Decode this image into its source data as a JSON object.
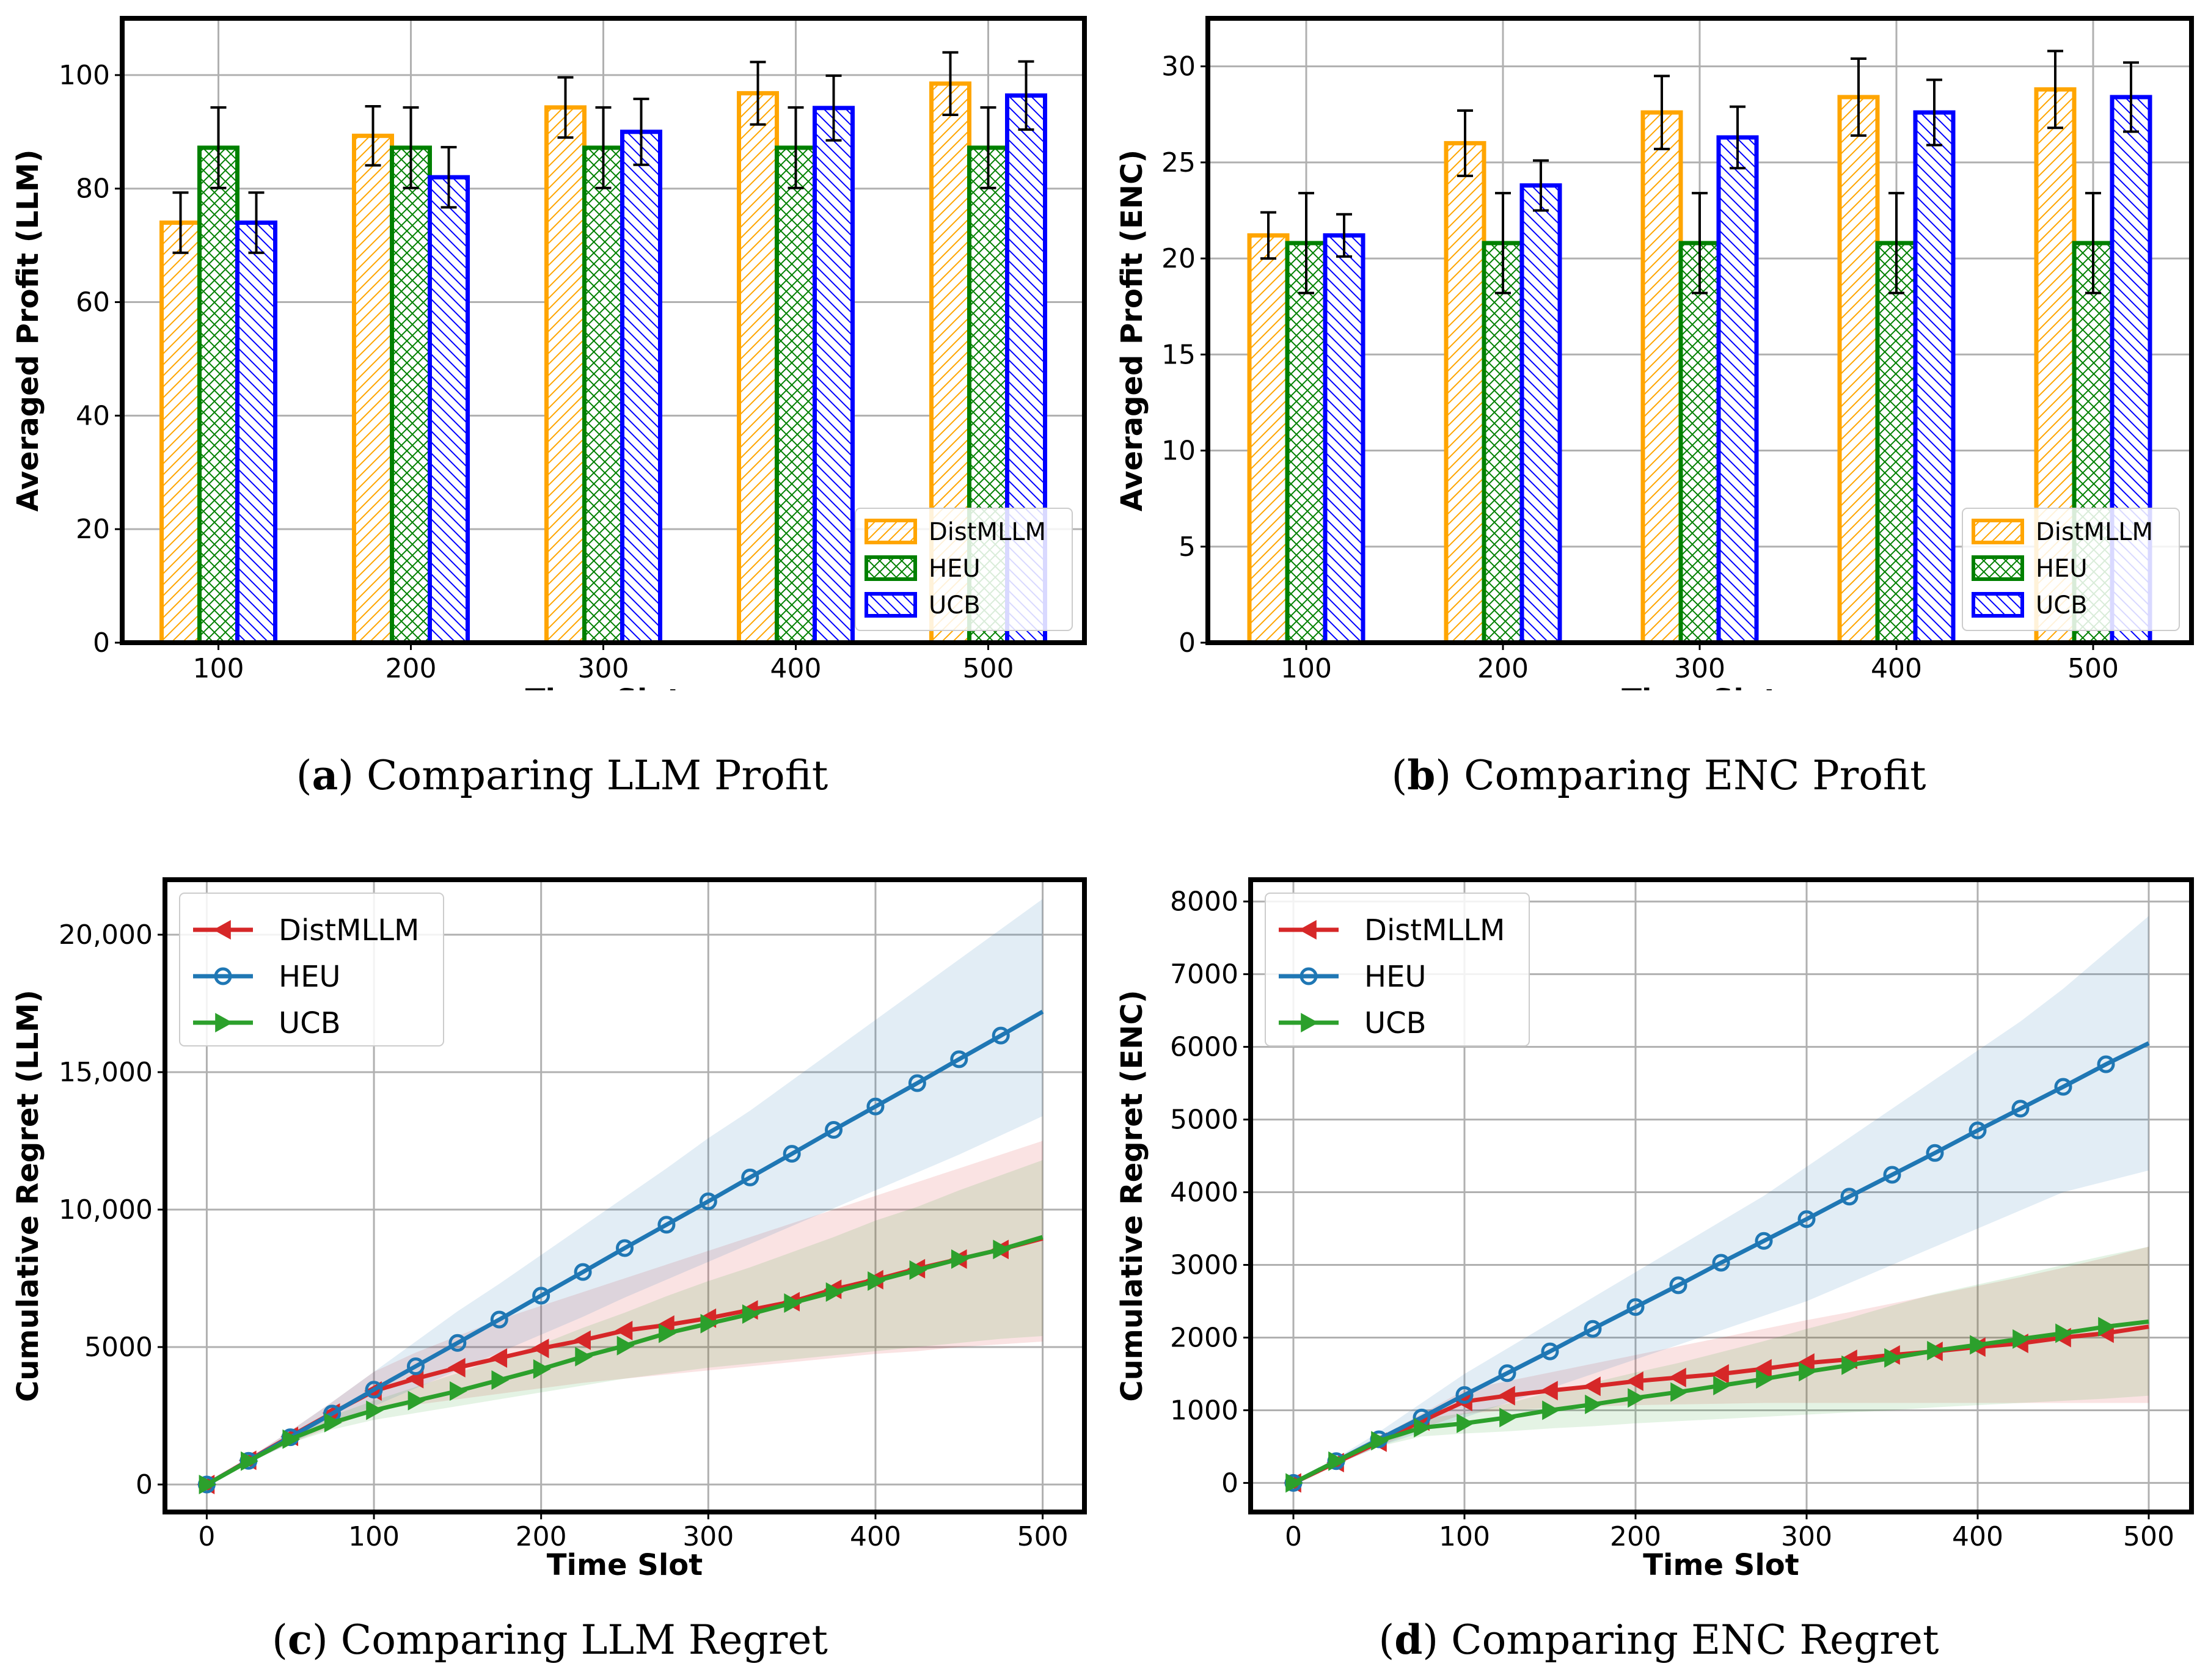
{
  "captions": [
    {
      "letter": "a",
      "open": "(",
      "close": ")",
      "text": "Comparing LLM Profit"
    },
    {
      "letter": "b",
      "open": "(",
      "close": ")",
      "text": "Comparing ENC Profit"
    },
    {
      "letter": "c",
      "open": "(",
      "close": ")",
      "text": "Comparing LLM Regret"
    },
    {
      "letter": "d",
      "open": "(",
      "close": ")",
      "text": "Comparing ENC Regret"
    }
  ],
  "colors": {
    "DistMLLM_bar": "#ffa500",
    "HEU_bar": "#008000",
    "UCB_bar": "#0000ff",
    "DistMLLM_line": "#d62728",
    "HEU_line": "#1f77b4",
    "UCB_line": "#2ca02c"
  },
  "chart_data": [
    {
      "type": "bar",
      "title": "",
      "xlabel": "Time Slot",
      "ylabel": "Averaged Profit (LLM)",
      "categories": [
        "100",
        "200",
        "300",
        "400",
        "500"
      ],
      "ylim": [
        0,
        110
      ],
      "yticks": [
        0,
        20,
        40,
        60,
        80,
        100
      ],
      "ytick_labels": [
        "0",
        "20",
        "40",
        "60",
        "80",
        "100"
      ],
      "legend_location": "lower right",
      "series": [
        {
          "name": "DistMLLM",
          "values": [
            74,
            89.3,
            94.3,
            96.8,
            98.5
          ],
          "errors": [
            5.3,
            5.2,
            5.3,
            5.5,
            5.5
          ]
        },
        {
          "name": "HEU",
          "values": [
            87.2,
            87.2,
            87.2,
            87.2,
            87.2
          ],
          "errors": [
            7.1,
            7.1,
            7.1,
            7.1,
            7.1
          ]
        },
        {
          "name": "UCB",
          "values": [
            74,
            82,
            90,
            94.2,
            96.4
          ],
          "errors": [
            5.3,
            5.3,
            5.8,
            5.7,
            6.0
          ]
        }
      ]
    },
    {
      "type": "bar",
      "title": "",
      "xlabel": "Time Slot",
      "ylabel": "Averaged Profit (ENC)",
      "categories": [
        "100",
        "200",
        "300",
        "400",
        "500"
      ],
      "ylim": [
        0,
        32.5
      ],
      "yticks": [
        0,
        5,
        10,
        15,
        20,
        25,
        30
      ],
      "ytick_labels": [
        "0",
        "5",
        "10",
        "15",
        "20",
        "25",
        "30"
      ],
      "legend_location": "lower right",
      "series": [
        {
          "name": "DistMLLM",
          "values": [
            21.2,
            26,
            27.6,
            28.4,
            28.8
          ],
          "errors": [
            1.2,
            1.7,
            1.9,
            2.0,
            2.0
          ]
        },
        {
          "name": "HEU",
          "values": [
            20.8,
            20.8,
            20.8,
            20.8,
            20.8
          ],
          "errors": [
            2.6,
            2.6,
            2.6,
            2.6,
            2.6
          ]
        },
        {
          "name": "UCB",
          "values": [
            21.2,
            23.8,
            26.3,
            27.6,
            28.4
          ],
          "errors": [
            1.1,
            1.3,
            1.6,
            1.7,
            1.8
          ]
        }
      ]
    },
    {
      "type": "line",
      "title": "",
      "xlabel": "Time Slot",
      "ylabel": "Cumulative Regret (LLM)",
      "xlim": [
        -25,
        525
      ],
      "ylim": [
        -1000,
        22000
      ],
      "xticks": [
        0,
        100,
        200,
        300,
        400,
        500
      ],
      "xtick_labels": [
        "0",
        "100",
        "200",
        "300",
        "400",
        "500"
      ],
      "yticks": [
        0,
        5000,
        10000,
        15000,
        20000
      ],
      "ytick_labels": [
        "0",
        "5000",
        "10,000",
        "15,000",
        "20,000"
      ],
      "legend_location": "upper left",
      "series": [
        {
          "name": "DistMLLM",
          "marker": "triangle-left",
          "x": [
            0,
            25,
            50,
            75,
            100,
            125,
            150,
            175,
            200,
            225,
            250,
            275,
            300,
            325,
            350,
            375,
            400,
            425,
            450,
            475,
            500
          ],
          "y": [
            0,
            880,
            1750,
            2600,
            3400,
            3850,
            4250,
            4600,
            4950,
            5250,
            5600,
            5800,
            6050,
            6350,
            6650,
            7100,
            7450,
            7850,
            8200,
            8550,
            8950
          ],
          "band_lower": [
            0,
            800,
            1500,
            2100,
            2700,
            2900,
            3100,
            3300,
            3500,
            3700,
            3850,
            4000,
            4150,
            4300,
            4450,
            4600,
            4750,
            4850,
            5000,
            5100,
            5200
          ],
          "band_upper": [
            0,
            950,
            1950,
            3000,
            4100,
            4800,
            5400,
            6000,
            6500,
            7000,
            7500,
            8000,
            8500,
            9000,
            9500,
            10000,
            10500,
            11000,
            11500,
            12000,
            12500
          ]
        },
        {
          "name": "HEU",
          "marker": "circle",
          "x": [
            0,
            25,
            50,
            75,
            100,
            125,
            150,
            175,
            200,
            225,
            250,
            275,
            300,
            325,
            350,
            375,
            400,
            425,
            450,
            475,
            500
          ],
          "y": [
            0,
            860,
            1720,
            2580,
            3450,
            4300,
            5150,
            6000,
            6870,
            7730,
            8600,
            9450,
            10300,
            11170,
            12030,
            12900,
            13750,
            14600,
            15470,
            16330,
            17200
          ],
          "band_lower": [
            0,
            780,
            1500,
            2200,
            2850,
            3500,
            4150,
            4800,
            5450,
            6100,
            6800,
            7450,
            8100,
            8750,
            9400,
            10050,
            10700,
            11350,
            12000,
            12700,
            13400
          ],
          "band_upper": [
            0,
            950,
            1950,
            3000,
            4100,
            5200,
            6300,
            7300,
            8350,
            9400,
            10450,
            11500,
            12600,
            13600,
            14700,
            15800,
            16900,
            18000,
            19100,
            20200,
            21300
          ]
        },
        {
          "name": "UCB",
          "marker": "triangle-right",
          "x": [
            0,
            25,
            50,
            75,
            100,
            125,
            150,
            175,
            200,
            225,
            250,
            275,
            300,
            325,
            350,
            375,
            400,
            425,
            450,
            475,
            500
          ],
          "y": [
            0,
            850,
            1650,
            2250,
            2700,
            3050,
            3400,
            3800,
            4200,
            4650,
            5050,
            5500,
            5850,
            6200,
            6600,
            7000,
            7400,
            7800,
            8200,
            8550,
            9000
          ],
          "band_lower": [
            0,
            800,
            1500,
            2000,
            2350,
            2600,
            2850,
            3100,
            3350,
            3600,
            3850,
            4050,
            4250,
            4400,
            4550,
            4700,
            4850,
            5000,
            5150,
            5300,
            5400
          ],
          "band_upper": [
            0,
            900,
            1800,
            2500,
            3050,
            3550,
            4050,
            4600,
            5100,
            5700,
            6250,
            6850,
            7400,
            7900,
            8450,
            9000,
            9600,
            10100,
            10700,
            11250,
            11800
          ]
        }
      ]
    },
    {
      "type": "line",
      "title": "",
      "xlabel": "Time Slot",
      "ylabel": "Cumulative Regret (ENC)",
      "xlim": [
        -25,
        525
      ],
      "ylim": [
        -400,
        8300
      ],
      "xticks": [
        0,
        100,
        200,
        300,
        400,
        500
      ],
      "xtick_labels": [
        "0",
        "100",
        "200",
        "300",
        "400",
        "500"
      ],
      "yticks": [
        0,
        1000,
        2000,
        3000,
        4000,
        5000,
        6000,
        7000,
        8000
      ],
      "ytick_labels": [
        "0",
        "1000",
        "2000",
        "3000",
        "4000",
        "5000",
        "6000",
        "7000",
        "8000"
      ],
      "legend_location": "upper left",
      "series": [
        {
          "name": "DistMLLM",
          "marker": "triangle-left",
          "x": [
            0,
            25,
            50,
            75,
            100,
            125,
            150,
            175,
            200,
            225,
            250,
            275,
            300,
            325,
            350,
            375,
            400,
            425,
            450,
            475,
            500
          ],
          "y": [
            0,
            280,
            560,
            850,
            1120,
            1200,
            1270,
            1330,
            1400,
            1450,
            1500,
            1570,
            1650,
            1700,
            1760,
            1810,
            1870,
            1920,
            2000,
            2060,
            2150
          ],
          "band_lower": [
            0,
            250,
            500,
            750,
            950,
            1000,
            1030,
            1050,
            1070,
            1080,
            1090,
            1100,
            1100,
            1100,
            1100,
            1100,
            1100,
            1100,
            1100,
            1100,
            1100
          ],
          "band_upper": [
            0,
            310,
            630,
            950,
            1280,
            1400,
            1520,
            1640,
            1760,
            1880,
            2000,
            2120,
            2240,
            2350,
            2470,
            2590,
            2710,
            2830,
            2960,
            3100,
            3250
          ]
        },
        {
          "name": "HEU",
          "marker": "circle",
          "x": [
            0,
            25,
            50,
            75,
            100,
            125,
            150,
            175,
            200,
            225,
            250,
            275,
            300,
            325,
            350,
            375,
            400,
            425,
            450,
            475,
            500
          ],
          "y": [
            0,
            300,
            600,
            900,
            1210,
            1510,
            1810,
            2120,
            2420,
            2720,
            3030,
            3330,
            3630,
            3940,
            4240,
            4540,
            4850,
            5150,
            5450,
            5760,
            6050
          ],
          "band_lower": [
            0,
            250,
            500,
            700,
            900,
            1100,
            1300,
            1500,
            1700,
            1900,
            2100,
            2300,
            2500,
            2750,
            3000,
            3250,
            3500,
            3750,
            4000,
            4150,
            4300
          ],
          "band_upper": [
            0,
            340,
            700,
            1100,
            1500,
            1850,
            2200,
            2550,
            2900,
            3250,
            3600,
            3950,
            4350,
            4750,
            5150,
            5550,
            5950,
            6350,
            6800,
            7300,
            7800
          ]
        },
        {
          "name": "UCB",
          "marker": "triangle-right",
          "x": [
            0,
            25,
            50,
            75,
            100,
            125,
            150,
            175,
            200,
            225,
            250,
            275,
            300,
            325,
            350,
            375,
            400,
            425,
            450,
            475,
            500
          ],
          "y": [
            0,
            300,
            580,
            760,
            820,
            900,
            1000,
            1080,
            1170,
            1250,
            1340,
            1430,
            1530,
            1620,
            1720,
            1820,
            1900,
            1980,
            2060,
            2150,
            2220
          ],
          "band_lower": [
            0,
            260,
            500,
            640,
            680,
            710,
            750,
            780,
            820,
            850,
            880,
            910,
            940,
            970,
            1000,
            1040,
            1070,
            1100,
            1130,
            1160,
            1200
          ],
          "band_upper": [
            0,
            330,
            650,
            880,
            960,
            1090,
            1250,
            1380,
            1520,
            1650,
            1800,
            1950,
            2120,
            2270,
            2440,
            2600,
            2730,
            2860,
            3000,
            3130,
            3250
          ]
        }
      ]
    }
  ]
}
